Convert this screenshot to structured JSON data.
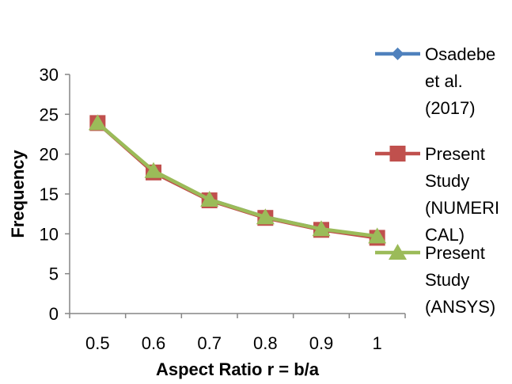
{
  "chart_data": {
    "type": "line",
    "xlabel": "Aspect Ratio r = b/a",
    "ylabel": "Frequency",
    "ylim": [
      0,
      30
    ],
    "y_ticks": [
      "0",
      "5",
      "10",
      "15",
      "20",
      "25",
      "30"
    ],
    "categories": [
      "0.5",
      "0.6",
      "0.7",
      "0.8",
      "0.9",
      "1"
    ],
    "grid": false,
    "legend_position": "right",
    "series": [
      {
        "name": "Osadebe et al. (2017)",
        "legend_lines": [
          "Osadebe",
          "et al.",
          "(2017)"
        ],
        "color": "#4F81BD",
        "marker": "diamond",
        "values": [
          23.9,
          17.8,
          14.3,
          12.1,
          10.6,
          9.6
        ]
      },
      {
        "name": "Present Study (NUMERICAL)",
        "legend_lines": [
          "Present",
          "Study",
          "(NUMERI",
          "CAL)"
        ],
        "color": "#C0504D",
        "marker": "square",
        "values": [
          23.9,
          17.7,
          14.2,
          12.0,
          10.5,
          9.5
        ]
      },
      {
        "name": "Present Study (ANSYS)",
        "legend_lines": [
          "Present",
          "Study",
          "(ANSYS)"
        ],
        "color": "#9BBB59",
        "marker": "triangle",
        "values": [
          23.9,
          17.9,
          14.3,
          12.1,
          10.6,
          9.7
        ]
      }
    ]
  }
}
